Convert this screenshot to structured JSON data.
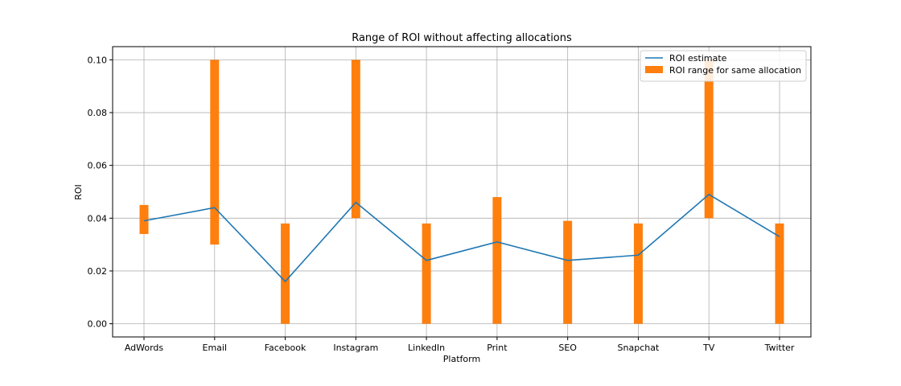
{
  "chart_data": {
    "type": "bar",
    "title": "Range of ROI without affecting allocations",
    "xlabel": "Platform",
    "ylabel": "ROI",
    "categories": [
      "AdWords",
      "Email",
      "Facebook",
      "Instagram",
      "LinkedIn",
      "Print",
      "SEO",
      "Snapchat",
      "TV",
      "Twitter"
    ],
    "ylim": [
      -0.005,
      0.105
    ],
    "yticks": [
      0.0,
      0.02,
      0.04,
      0.06,
      0.08,
      0.1
    ],
    "ytick_labels": [
      "0.00",
      "0.02",
      "0.04",
      "0.06",
      "0.08",
      "0.10"
    ],
    "grid": true,
    "legend_position": "top-right",
    "series": [
      {
        "name": "ROI estimate",
        "kind": "line",
        "color": "#1f77b4",
        "values": [
          0.039,
          0.044,
          0.016,
          0.046,
          0.024,
          0.031,
          0.024,
          0.026,
          0.049,
          0.033
        ]
      },
      {
        "name": "ROI range for same allocation",
        "kind": "range-bar",
        "color": "#ff7f0e",
        "low": [
          0.034,
          0.03,
          0.0,
          0.04,
          0.0,
          0.0,
          0.0,
          0.0,
          0.04,
          0.0
        ],
        "high": [
          0.045,
          0.1,
          0.038,
          0.1,
          0.038,
          0.048,
          0.039,
          0.038,
          0.1,
          0.038
        ]
      }
    ]
  }
}
